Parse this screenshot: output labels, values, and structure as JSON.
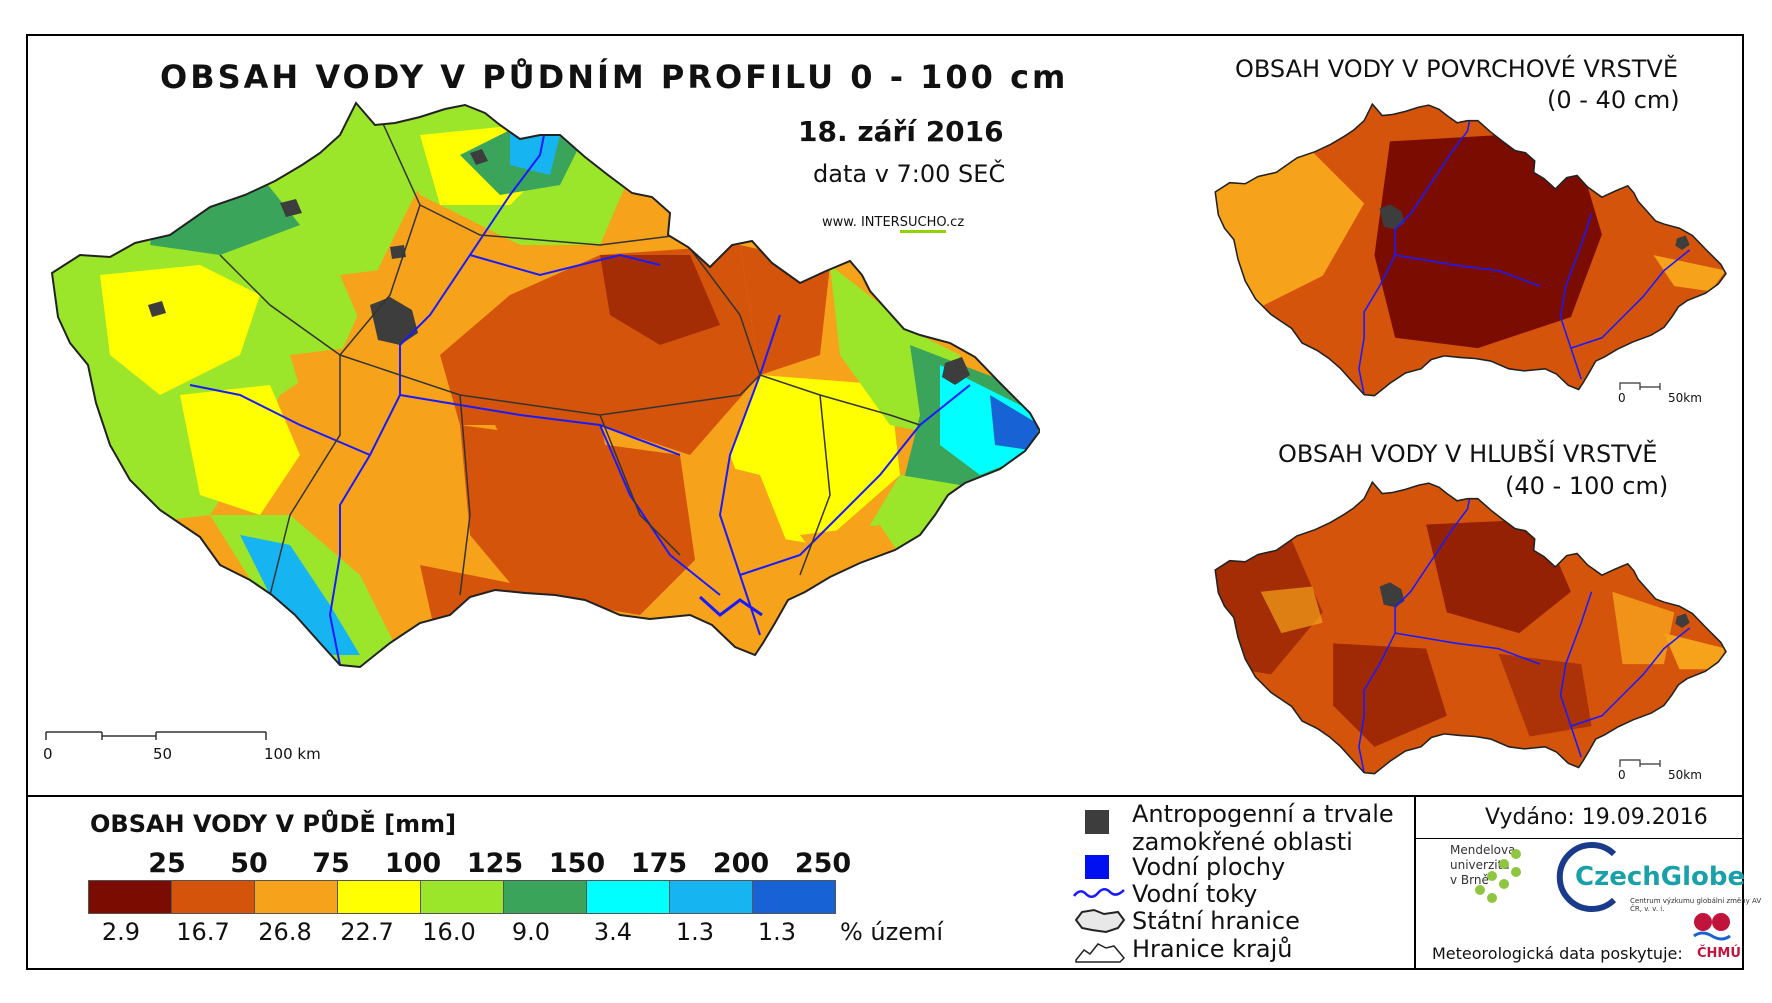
{
  "main_map": {
    "title": "OBSAH VODY V PŮDNÍM PROFILU 0 - 100 cm",
    "date": "18. září 2016",
    "time": "data v 7:00 SEČ",
    "url_prefix": "www. INTER",
    "url_highlight": "SUCHO",
    "url_suffix": ".cz",
    "scale_labels": [
      "0",
      "50",
      "100 km"
    ]
  },
  "inset_top": {
    "title": "OBSAH VODY V POVRCHOVÉ VRSTVĚ",
    "depth": "(0 - 40 cm)",
    "scale_labels": [
      "0",
      "50km"
    ]
  },
  "inset_bottom": {
    "title": "OBSAH VODY V HLUBŠÍ VRSTVĚ",
    "depth": "(40 - 100 cm)",
    "scale_labels": [
      "0",
      "50km"
    ]
  },
  "legend": {
    "title": "OBSAH VODY V PŮDĚ [mm]",
    "breaks": [
      "25",
      "50",
      "75",
      "100",
      "125",
      "150",
      "175",
      "200",
      "250"
    ],
    "classes": [
      {
        "color": "#7b0c02",
        "percent": "2.9"
      },
      {
        "color": "#d4540c",
        "percent": "16.7"
      },
      {
        "color": "#f7a21b",
        "percent": "26.8"
      },
      {
        "color": "#ffff00",
        "percent": "22.7"
      },
      {
        "color": "#9be52b",
        "percent": "16.0"
      },
      {
        "color": "#3aa55a",
        "percent": "9.0"
      },
      {
        "color": "#00ffff",
        "percent": "3.4"
      },
      {
        "color": "#17b4f2",
        "percent": "1.3"
      },
      {
        "color": "#1763d6",
        "percent": "1.3"
      }
    ],
    "percent_unit": "% území"
  },
  "symbols": {
    "anthropogenic_line1": "Antropogenní a trvale",
    "anthropogenic_line2": "zamokřené oblasti",
    "water_bodies": "Vodní plochy",
    "rivers": "Vodní toky",
    "state_border": "Státní hranice",
    "region_border": "Hranice krajů",
    "colors": {
      "anthropogenic": "#3d3d3d",
      "water": "#0010f0",
      "river": "#1a1aff"
    }
  },
  "credits": {
    "issued": "Vydáno: 19.09.2016",
    "mendel_line1": "Mendelova",
    "mendel_line2": "univerzita",
    "mendel_line3": "v Brně",
    "czechglobe": "CzechGlobe",
    "czechglobe_sub": "Centrum výzkumu globální změny AV ČR, v. v. i.",
    "meteo": "Meteorologická data poskytuje:",
    "chmu": "ČHMÚ"
  }
}
